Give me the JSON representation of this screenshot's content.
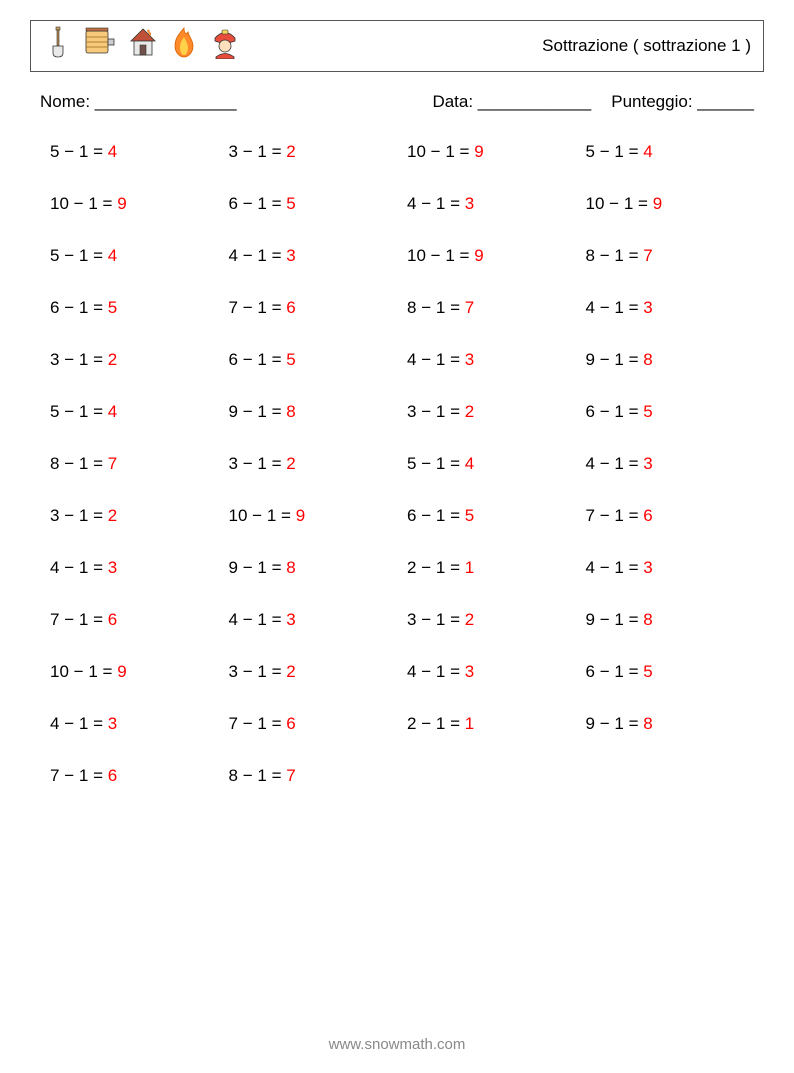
{
  "header": {
    "icons": [
      "🪓",
      "🧯",
      "🏠",
      "🔥",
      "👨‍🚒"
    ],
    "title": "Sottrazione ( sottrazione 1 )"
  },
  "info": {
    "name_label": "Nome: _______________",
    "date_label": "Data: ____________",
    "score_label": "Punteggio: ______"
  },
  "grid": {
    "minus": "−",
    "equals": "=",
    "problems": [
      {
        "a": 5,
        "b": 1,
        "ans": 4
      },
      {
        "a": 3,
        "b": 1,
        "ans": 2
      },
      {
        "a": 10,
        "b": 1,
        "ans": 9
      },
      {
        "a": 5,
        "b": 1,
        "ans": 4
      },
      {
        "a": 10,
        "b": 1,
        "ans": 9
      },
      {
        "a": 6,
        "b": 1,
        "ans": 5
      },
      {
        "a": 4,
        "b": 1,
        "ans": 3
      },
      {
        "a": 10,
        "b": 1,
        "ans": 9
      },
      {
        "a": 5,
        "b": 1,
        "ans": 4
      },
      {
        "a": 4,
        "b": 1,
        "ans": 3
      },
      {
        "a": 10,
        "b": 1,
        "ans": 9
      },
      {
        "a": 8,
        "b": 1,
        "ans": 7
      },
      {
        "a": 6,
        "b": 1,
        "ans": 5
      },
      {
        "a": 7,
        "b": 1,
        "ans": 6
      },
      {
        "a": 8,
        "b": 1,
        "ans": 7
      },
      {
        "a": 4,
        "b": 1,
        "ans": 3
      },
      {
        "a": 3,
        "b": 1,
        "ans": 2
      },
      {
        "a": 6,
        "b": 1,
        "ans": 5
      },
      {
        "a": 4,
        "b": 1,
        "ans": 3
      },
      {
        "a": 9,
        "b": 1,
        "ans": 8
      },
      {
        "a": 5,
        "b": 1,
        "ans": 4
      },
      {
        "a": 9,
        "b": 1,
        "ans": 8
      },
      {
        "a": 3,
        "b": 1,
        "ans": 2
      },
      {
        "a": 6,
        "b": 1,
        "ans": 5
      },
      {
        "a": 8,
        "b": 1,
        "ans": 7
      },
      {
        "a": 3,
        "b": 1,
        "ans": 2
      },
      {
        "a": 5,
        "b": 1,
        "ans": 4
      },
      {
        "a": 4,
        "b": 1,
        "ans": 3
      },
      {
        "a": 3,
        "b": 1,
        "ans": 2
      },
      {
        "a": 10,
        "b": 1,
        "ans": 9
      },
      {
        "a": 6,
        "b": 1,
        "ans": 5
      },
      {
        "a": 7,
        "b": 1,
        "ans": 6
      },
      {
        "a": 4,
        "b": 1,
        "ans": 3
      },
      {
        "a": 9,
        "b": 1,
        "ans": 8
      },
      {
        "a": 2,
        "b": 1,
        "ans": 1
      },
      {
        "a": 4,
        "b": 1,
        "ans": 3
      },
      {
        "a": 7,
        "b": 1,
        "ans": 6
      },
      {
        "a": 4,
        "b": 1,
        "ans": 3
      },
      {
        "a": 3,
        "b": 1,
        "ans": 2
      },
      {
        "a": 9,
        "b": 1,
        "ans": 8
      },
      {
        "a": 10,
        "b": 1,
        "ans": 9
      },
      {
        "a": 3,
        "b": 1,
        "ans": 2
      },
      {
        "a": 4,
        "b": 1,
        "ans": 3
      },
      {
        "a": 6,
        "b": 1,
        "ans": 5
      },
      {
        "a": 4,
        "b": 1,
        "ans": 3
      },
      {
        "a": 7,
        "b": 1,
        "ans": 6
      },
      {
        "a": 2,
        "b": 1,
        "ans": 1
      },
      {
        "a": 9,
        "b": 1,
        "ans": 8
      },
      {
        "a": 7,
        "b": 1,
        "ans": 6
      },
      {
        "a": 8,
        "b": 1,
        "ans": 7
      }
    ]
  },
  "footer": {
    "text": "www.snowmath.com"
  }
}
